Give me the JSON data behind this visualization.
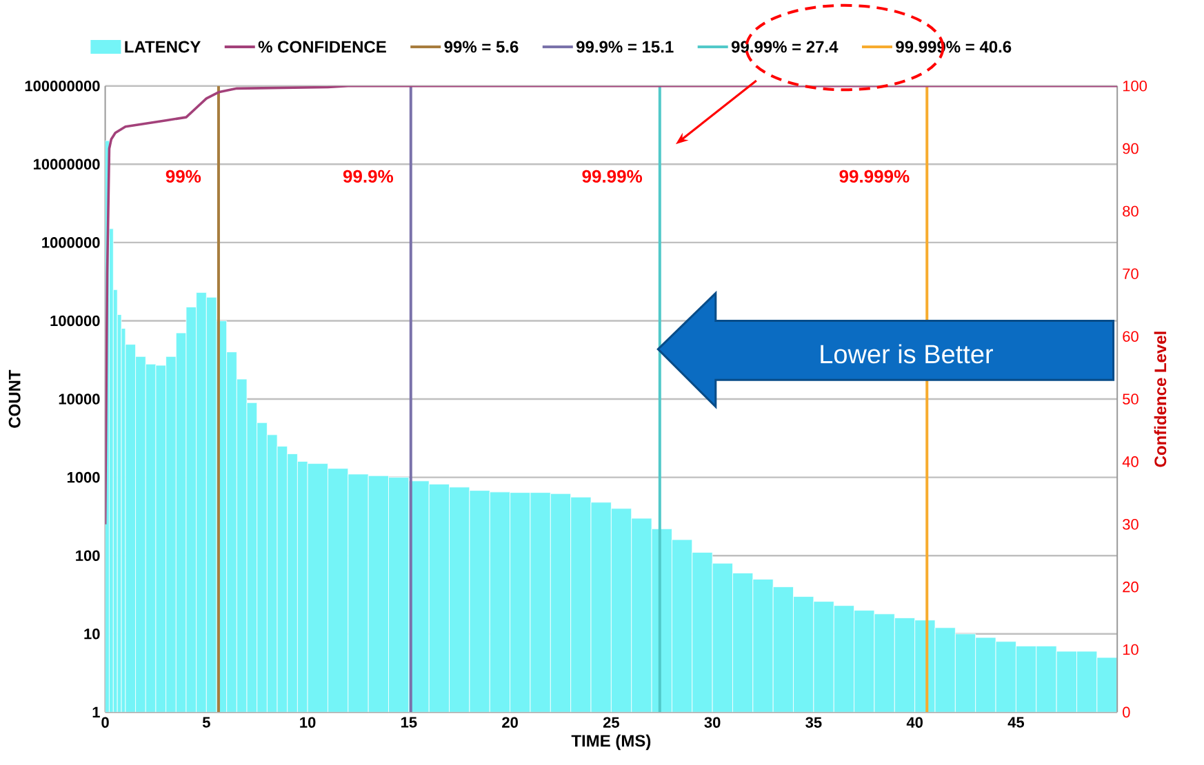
{
  "chart_data": {
    "type": "histogram",
    "xlabel": "TIME (MS)",
    "ylabel": "COUNT",
    "y2label": "Confidence Level",
    "xlim": [
      0,
      50
    ],
    "xticks": [
      0,
      5,
      10,
      15,
      20,
      25,
      30,
      35,
      40,
      45
    ],
    "ylim": [
      1,
      100000000
    ],
    "yticks": [
      1,
      10,
      100,
      1000,
      10000,
      100000,
      1000000,
      10000000,
      100000000
    ],
    "log": "y",
    "y2lim": [
      0,
      100
    ],
    "y2ticks": [
      0,
      10,
      20,
      30,
      40,
      50,
      60,
      70,
      80,
      90,
      100
    ],
    "grid": "y",
    "legend": "top",
    "series": [
      {
        "name": "LATENCY",
        "color": "#74f4f7",
        "bins": [
          0,
          0.2,
          0.4,
          0.6,
          0.8,
          1,
          1.5,
          2,
          2.5,
          3,
          3.5,
          4,
          4.5,
          5,
          5.5,
          6,
          6.5,
          7,
          7.5,
          8,
          8.5,
          9,
          9.5,
          10,
          11,
          12,
          13,
          14,
          15,
          16,
          17,
          18,
          19,
          20,
          21,
          22,
          23,
          24,
          25,
          26,
          27,
          28,
          29,
          30,
          31,
          32,
          33,
          34,
          35,
          36,
          37,
          38,
          39,
          40,
          41,
          42,
          43,
          44,
          45,
          46,
          47,
          48,
          49,
          50
        ],
        "values": [
          20000000,
          1500000,
          250000,
          120000,
          80000,
          50000,
          35000,
          28000,
          27000,
          35000,
          70000,
          150000,
          230000,
          200000,
          100000,
          40000,
          18000,
          9000,
          5000,
          3500,
          2500,
          2000,
          1600,
          1500,
          1300,
          1100,
          1050,
          1000,
          900,
          820,
          750,
          680,
          650,
          640,
          640,
          620,
          560,
          480,
          400,
          300,
          220,
          160,
          110,
          80,
          60,
          50,
          40,
          30,
          26,
          23,
          20,
          18,
          16,
          15,
          12,
          10,
          9,
          8,
          7,
          7,
          6,
          6,
          5
        ]
      },
      {
        "name": "% CONFIDENCE",
        "type": "line",
        "axis": "y2",
        "color": "#a3417a",
        "x": [
          0,
          0.1,
          0.2,
          0.3,
          0.5,
          1,
          2,
          3,
          4,
          4.5,
          5,
          5.6,
          6.5,
          11,
          12,
          50
        ],
        "values": [
          30,
          70,
          90,
          91.5,
          92.5,
          93.5,
          94,
          94.5,
          95,
          96.5,
          98,
          99,
          99.6,
          99.8,
          100,
          100
        ]
      }
    ],
    "ref_lines": [
      {
        "axis": "x",
        "value": 5.6,
        "label": "99% = 5.6",
        "color": "#a77d3e"
      },
      {
        "axis": "x",
        "value": 15.1,
        "label": "99.9% = 15.1",
        "color": "#7a72aa"
      },
      {
        "axis": "x",
        "value": 27.4,
        "label": "99.99% = 27.4",
        "color": "#52c9c9"
      },
      {
        "axis": "x",
        "value": 40.6,
        "label": "99.999% = 40.6",
        "color": "#f7ab2e"
      }
    ],
    "annotations": [
      {
        "text": "99%",
        "x": 5.6,
        "y": 7000000
      },
      {
        "text": "99.9%",
        "x": 15.1,
        "y": 7000000
      },
      {
        "text": "99.99%",
        "x": 27.4,
        "y": 7000000
      },
      {
        "text": "99.999%",
        "x": 40.6,
        "y": 7000000
      },
      "Lower is Better"
    ]
  }
}
